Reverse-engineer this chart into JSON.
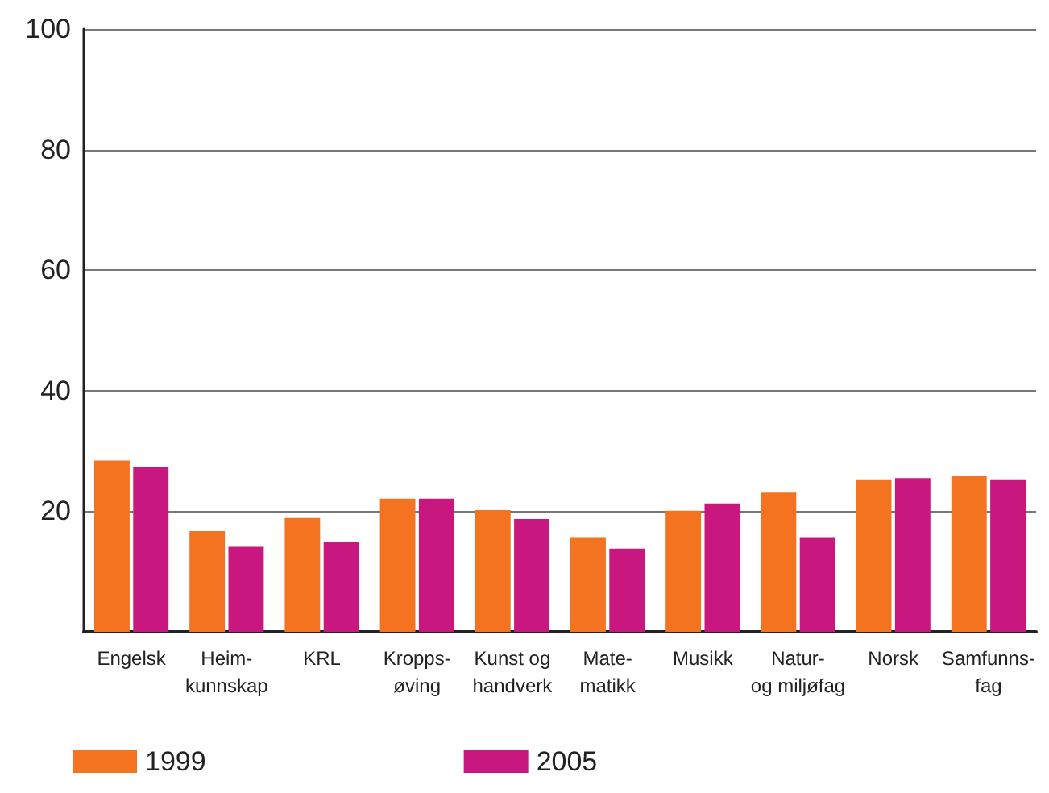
{
  "chart_data": {
    "type": "bar",
    "categories": [
      "Engelsk",
      "Heim-\nkunnskap",
      "KRL",
      "Kropps-\nøving",
      "Kunst og\nhandverk",
      "Mate-\nmatikk",
      "Musikk",
      "Natur-\nog miljøfag",
      "Norsk",
      "Samfunns-\nfag"
    ],
    "series": [
      {
        "name": "1999",
        "color": "#f37321",
        "values": [
          28.4,
          16.7,
          18.9,
          22.1,
          20.2,
          15.7,
          20.1,
          23.1,
          25.3,
          25.8
        ]
      },
      {
        "name": "2005",
        "color": "#c8177f",
        "values": [
          27.4,
          14.1,
          14.9,
          22.1,
          18.7,
          13.8,
          21.3,
          15.7,
          25.5,
          25.3
        ]
      }
    ],
    "ylim": [
      0,
      100
    ],
    "yticks": [
      {
        "value": 0,
        "label": null
      },
      20,
      40,
      60,
      80,
      100
    ],
    "grid": "y",
    "legend": "bottom left"
  }
}
